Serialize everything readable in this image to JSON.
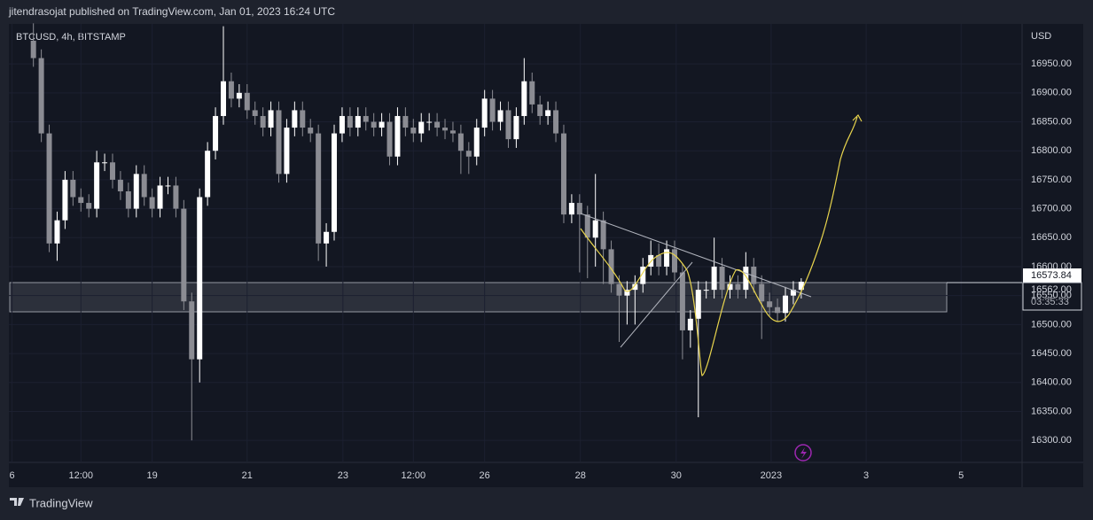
{
  "header": "jitendrasojat published on TradingView.com, Jan 01, 2023 16:24 UTC",
  "footer": "TradingView",
  "chart_data": {
    "type": "candlestick",
    "title": "BTCUSD, 4h, BITSTAMP",
    "y_axis_label": "USD",
    "up_color": "#ffffff",
    "down_color": "#8b8c93",
    "ylim": [
      16262,
      17019
    ],
    "yticks": [
      {
        "value": 16300,
        "label": "16300.00"
      },
      {
        "value": 16350,
        "label": "16350.00"
      },
      {
        "value": 16400,
        "label": "16400.00"
      },
      {
        "value": 16450,
        "label": "16450.00"
      },
      {
        "value": 16500,
        "label": "16500.00"
      },
      {
        "value": 16550,
        "label": "16550.00"
      },
      {
        "value": 16600,
        "label": "16600.00"
      },
      {
        "value": 16650,
        "label": "16650.00"
      },
      {
        "value": 16700,
        "label": "16700.00"
      },
      {
        "value": 16750,
        "label": "16750.00"
      },
      {
        "value": 16800,
        "label": "16800.00"
      },
      {
        "value": 16850,
        "label": "16850.00"
      },
      {
        "value": 16900,
        "label": "16900.00"
      },
      {
        "value": 16950,
        "label": "16950.00"
      }
    ],
    "xlim": [
      -3.1,
      124.9
    ],
    "xticks": [
      {
        "value": -2.7,
        "label": "6"
      },
      {
        "value": 6.0,
        "label": "12:00"
      },
      {
        "value": 15.0,
        "label": "19"
      },
      {
        "value": 27.0,
        "label": "21"
      },
      {
        "value": 39.1,
        "label": "23"
      },
      {
        "value": 48.0,
        "label": "12:00"
      },
      {
        "value": 57.0,
        "label": "26"
      },
      {
        "value": 69.1,
        "label": "28"
      },
      {
        "value": 81.2,
        "label": "30"
      },
      {
        "value": 93.2,
        "label": "2023"
      },
      {
        "value": 105.2,
        "label": "3"
      },
      {
        "value": 117.2,
        "label": "5"
      }
    ],
    "price_labels": [
      {
        "value": 16573.84,
        "label": "16573.84"
      },
      {
        "value": 16562.0,
        "label": "16562.00"
      },
      {
        "label": "03:35:33"
      }
    ],
    "candles": [
      [
        16990,
        17020,
        16945,
        16960
      ],
      [
        16960,
        16975,
        16815,
        16830
      ],
      [
        16830,
        16845,
        16625,
        16640
      ],
      [
        16640,
        16695,
        16610,
        16680
      ],
      [
        16680,
        16765,
        16665,
        16750
      ],
      [
        16750,
        16765,
        16705,
        16720
      ],
      [
        16720,
        16735,
        16695,
        16710
      ],
      [
        16710,
        16725,
        16685,
        16700
      ],
      [
        16700,
        16800,
        16685,
        16780
      ],
      [
        16780,
        16795,
        16765,
        16780
      ],
      [
        16780,
        16795,
        16735,
        16750
      ],
      [
        16750,
        16765,
        16715,
        16730
      ],
      [
        16730,
        16745,
        16685,
        16700
      ],
      [
        16700,
        16775,
        16685,
        16760
      ],
      [
        16760,
        16775,
        16705,
        16720
      ],
      [
        16720,
        16735,
        16685,
        16700
      ],
      [
        16700,
        16755,
        16685,
        16740
      ],
      [
        16740,
        16755,
        16725,
        16740
      ],
      [
        16740,
        16755,
        16685,
        16700
      ],
      [
        16700,
        16715,
        16525,
        16540
      ],
      [
        16540,
        16555,
        16300,
        16440
      ],
      [
        16440,
        16735,
        16400,
        16720
      ],
      [
        16720,
        16815,
        16705,
        16800
      ],
      [
        16800,
        16875,
        16785,
        16860
      ],
      [
        16860,
        17015,
        16845,
        16920
      ],
      [
        16920,
        16935,
        16875,
        16890
      ],
      [
        16890,
        16915,
        16875,
        16900
      ],
      [
        16900,
        16915,
        16855,
        16870
      ],
      [
        16870,
        16885,
        16845,
        16860
      ],
      [
        16860,
        16875,
        16825,
        16840
      ],
      [
        16840,
        16885,
        16825,
        16870
      ],
      [
        16870,
        16885,
        16745,
        16760
      ],
      [
        16760,
        16855,
        16745,
        16840
      ],
      [
        16840,
        16885,
        16825,
        16870
      ],
      [
        16870,
        16885,
        16825,
        16840
      ],
      [
        16840,
        16855,
        16815,
        16830
      ],
      [
        16830,
        16845,
        16610,
        16640
      ],
      [
        16640,
        16675,
        16600,
        16660
      ],
      [
        16660,
        16845,
        16645,
        16830
      ],
      [
        16830,
        16875,
        16815,
        16860
      ],
      [
        16860,
        16875,
        16825,
        16840
      ],
      [
        16840,
        16875,
        16825,
        16860
      ],
      [
        16860,
        16875,
        16835,
        16850
      ],
      [
        16850,
        16865,
        16825,
        16840
      ],
      [
        16840,
        16865,
        16825,
        16850
      ],
      [
        16850,
        16865,
        16775,
        16790
      ],
      [
        16790,
        16875,
        16775,
        16860
      ],
      [
        16860,
        16875,
        16825,
        16840
      ],
      [
        16840,
        16855,
        16815,
        16830
      ],
      [
        16830,
        16865,
        16815,
        16850
      ],
      [
        16850,
        16865,
        16835,
        16850
      ],
      [
        16850,
        16865,
        16825,
        16840
      ],
      [
        16840,
        16855,
        16820,
        16835
      ],
      [
        16835,
        16850,
        16815,
        16830
      ],
      [
        16830,
        16845,
        16760,
        16800
      ],
      [
        16800,
        16815,
        16760,
        16790
      ],
      [
        16790,
        16855,
        16775,
        16840
      ],
      [
        16840,
        16905,
        16825,
        16890
      ],
      [
        16890,
        16905,
        16835,
        16850
      ],
      [
        16850,
        16885,
        16835,
        16870
      ],
      [
        16870,
        16885,
        16805,
        16820
      ],
      [
        16820,
        16875,
        16805,
        16860
      ],
      [
        16860,
        16960,
        16845,
        16920
      ],
      [
        16920,
        16935,
        16865,
        16880
      ],
      [
        16880,
        16895,
        16845,
        16860
      ],
      [
        16860,
        16885,
        16845,
        16870
      ],
      [
        16870,
        16885,
        16815,
        16830
      ],
      [
        16830,
        16845,
        16675,
        16690
      ],
      [
        16690,
        16725,
        16675,
        16710
      ],
      [
        16710,
        16725,
        16590,
        16690
      ],
      [
        16690,
        16705,
        16580,
        16650
      ],
      [
        16650,
        16760,
        16600,
        16680
      ],
      [
        16680,
        16695,
        16570,
        16630
      ],
      [
        16630,
        16645,
        16555,
        16570
      ],
      [
        16570,
        16585,
        16470,
        16550
      ],
      [
        16550,
        16575,
        16500,
        16560
      ],
      [
        16560,
        16585,
        16500,
        16570
      ],
      [
        16570,
        16615,
        16555,
        16600
      ],
      [
        16600,
        16645,
        16585,
        16620
      ],
      [
        16620,
        16640,
        16585,
        16600
      ],
      [
        16600,
        16645,
        16585,
        16630
      ],
      [
        16630,
        16645,
        16575,
        16590
      ],
      [
        16590,
        16605,
        16440,
        16490
      ],
      [
        16490,
        16525,
        16460,
        16510
      ],
      [
        16510,
        16575,
        16340,
        16560
      ],
      [
        16560,
        16575,
        16545,
        16560
      ],
      [
        16560,
        16650,
        16545,
        16600
      ],
      [
        16600,
        16615,
        16545,
        16560
      ],
      [
        16560,
        16585,
        16545,
        16570
      ],
      [
        16570,
        16585,
        16545,
        16560
      ],
      [
        16560,
        16625,
        16545,
        16600
      ],
      [
        16600,
        16615,
        16555,
        16570
      ],
      [
        16570,
        16585,
        16475,
        16540
      ],
      [
        16540,
        16555,
        16515,
        16530
      ],
      [
        16530,
        16545,
        16505,
        16520
      ],
      [
        16520,
        16565,
        16505,
        16550
      ],
      [
        16550,
        16575,
        16535,
        16560
      ],
      [
        16560,
        16580,
        16545,
        16574
      ]
    ]
  }
}
